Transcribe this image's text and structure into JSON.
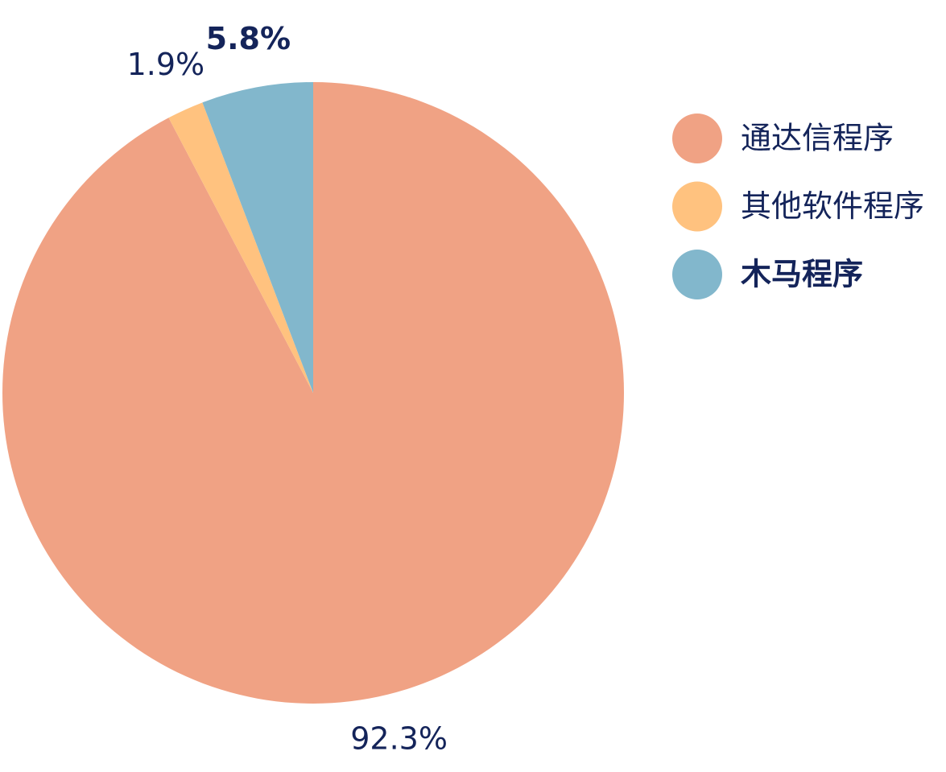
{
  "chart_data": {
    "type": "pie",
    "categories": [
      "通达信程序",
      "其他软件程序",
      "木马程序"
    ],
    "values": [
      92.3,
      1.9,
      5.8
    ],
    "value_labels": [
      "92.3%",
      "1.9%",
      "5.8%"
    ],
    "colors": [
      "#f0a284",
      "#ffc27f",
      "#82b7cc"
    ],
    "emphasis_index": 2,
    "legend": "right"
  }
}
